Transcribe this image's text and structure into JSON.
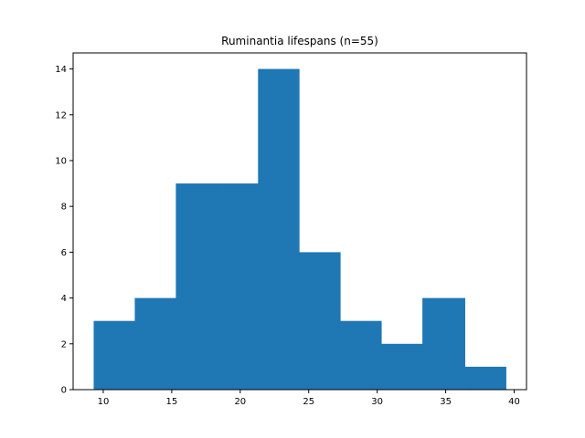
{
  "chart_data": {
    "type": "bar",
    "title": "Ruminantia lifespans (n=55)",
    "xlabel": "",
    "ylabel": "",
    "bin_edges": [
      9.3,
      12.3,
      15.3,
      18.3,
      21.3,
      24.3,
      27.3,
      30.3,
      33.3,
      36.4,
      39.4
    ],
    "values": [
      3,
      4,
      9,
      9,
      14,
      6,
      3,
      2,
      4,
      1
    ],
    "xlim": [
      7.8,
      40.9
    ],
    "ylim": [
      0,
      14.7
    ],
    "xticks": [
      10,
      15,
      20,
      25,
      30,
      35,
      40
    ],
    "yticks": [
      0,
      2,
      4,
      6,
      8,
      10,
      12,
      14
    ],
    "bar_color": "#1f77b4",
    "grid": false
  }
}
